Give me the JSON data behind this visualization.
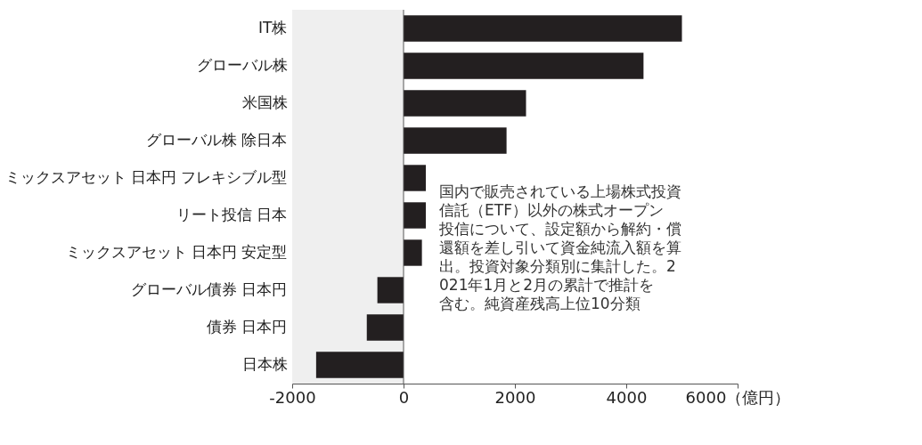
{
  "chart_data": {
    "type": "bar",
    "orientation": "horizontal",
    "categories": [
      "IT株",
      "グローバル株",
      "米国株",
      "グローバル株 除日本",
      "ミックスアセット 日本円 フレキシブル型",
      "リート投信 日本",
      "ミックスアセット 日本円 安定型",
      "グローバル債券 日本円",
      "債券 日本円",
      "日本株"
    ],
    "values": [
      5000,
      4310,
      2200,
      1850,
      400,
      400,
      330,
      -470,
      -660,
      -1570
    ],
    "color": "#231f20",
    "xlim": [
      -2000,
      6000
    ],
    "xticks": [
      -2000,
      0,
      2000,
      4000,
      {
        "value": 6000,
        "label": "6000（億円）"
      }
    ],
    "bands": [
      {
        "axis": "x",
        "from": -2000,
        "to": 0,
        "color": "#efefef"
      }
    ],
    "ref_lines": [
      {
        "axis": "x",
        "value": 0,
        "color": "#555555"
      }
    ],
    "grid": false,
    "annotations": [
      "国内で販売されている上場株式投資信託（ETF）以外の株式オープン投信について、設定額から解約・償還額を差し引いて資金純流入額を算出。投資対象分類別に集計した。2021年1月と2月の累計で推計を含む。純資産残高上位10分類"
    ]
  }
}
